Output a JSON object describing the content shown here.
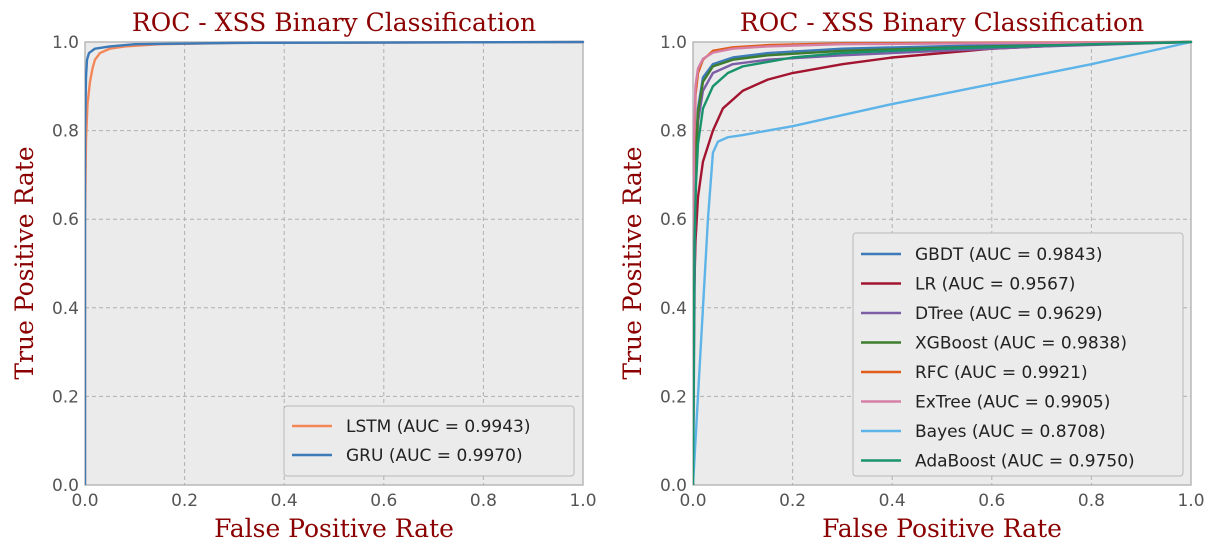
{
  "colors": {
    "LSTM": "#f4875a",
    "GRU": "#3d7ab8",
    "GBDT": "#3d7ab8",
    "LR": "#a2142f",
    "DTree": "#7b5ea6",
    "XGBoost": "#3e7d2e",
    "RFC": "#e05d1a",
    "ExTree": "#d67fa6",
    "Bayes": "#5eb4e8",
    "AdaBoost": "#18936c"
  },
  "chart_data": [
    {
      "type": "line",
      "title": "ROC - XSS Binary Classification",
      "xlabel": "False Positive Rate",
      "ylabel": "True Positive Rate",
      "xlim": [
        0.0,
        1.0
      ],
      "ylim": [
        0.0,
        1.0
      ],
      "xticks": [
        "0.0",
        "0.2",
        "0.4",
        "0.6",
        "0.8",
        "1.0"
      ],
      "yticks": [
        "0.0",
        "0.2",
        "0.4",
        "0.6",
        "0.8",
        "1.0"
      ],
      "grid": true,
      "legend_position": "lower-right",
      "series": [
        {
          "name": "LSTM (AUC = 0.9943)",
          "color_key": "LSTM",
          "x": [
            0,
            0,
            0.002,
            0.005,
            0.01,
            0.015,
            0.02,
            0.03,
            0.05,
            0.08,
            0.15,
            0.3,
            1.0
          ],
          "y": [
            0,
            0.6,
            0.78,
            0.86,
            0.91,
            0.94,
            0.96,
            0.975,
            0.985,
            0.99,
            0.995,
            0.998,
            1.0
          ]
        },
        {
          "name": "GRU (AUC = 0.9970)",
          "color_key": "GRU",
          "x": [
            0,
            0,
            0.002,
            0.004,
            0.008,
            0.02,
            0.05,
            0.1,
            0.3,
            1.0
          ],
          "y": [
            0,
            0.8,
            0.92,
            0.96,
            0.975,
            0.985,
            0.99,
            0.995,
            0.998,
            1.0
          ]
        }
      ]
    },
    {
      "type": "line",
      "title": "ROC - XSS Binary Classification",
      "xlabel": "False Positive Rate",
      "ylabel": "True Positive Rate",
      "xlim": [
        0.0,
        1.0
      ],
      "ylim": [
        0.0,
        1.0
      ],
      "xticks": [
        "0.0",
        "0.2",
        "0.4",
        "0.6",
        "0.8",
        "1.0"
      ],
      "yticks": [
        "0.0",
        "0.2",
        "0.4",
        "0.6",
        "0.8",
        "1.0"
      ],
      "grid": true,
      "legend_position": "lower-right",
      "series": [
        {
          "name": "GBDT (AUC = 0.9843)",
          "color_key": "GBDT",
          "x": [
            0,
            0.002,
            0.005,
            0.01,
            0.02,
            0.04,
            0.08,
            0.15,
            0.3,
            0.6,
            1.0
          ],
          "y": [
            0,
            0.55,
            0.75,
            0.85,
            0.92,
            0.95,
            0.965,
            0.975,
            0.985,
            0.993,
            1.0
          ]
        },
        {
          "name": "LR (AUC = 0.9567)",
          "color_key": "LR",
          "x": [
            0,
            0.002,
            0.005,
            0.01,
            0.02,
            0.04,
            0.06,
            0.1,
            0.15,
            0.2,
            0.3,
            0.4,
            0.6,
            0.8,
            1.0
          ],
          "y": [
            0,
            0.42,
            0.55,
            0.65,
            0.73,
            0.8,
            0.85,
            0.89,
            0.915,
            0.93,
            0.95,
            0.965,
            0.985,
            0.995,
            1.0
          ]
        },
        {
          "name": "DTree (AUC = 0.9629)",
          "color_key": "DTree",
          "x": [
            0,
            0.005,
            0.01,
            0.02,
            0.04,
            0.08,
            0.15,
            0.3,
            0.5,
            0.7,
            1.0
          ],
          "y": [
            0,
            0.7,
            0.82,
            0.89,
            0.93,
            0.95,
            0.96,
            0.97,
            0.98,
            0.99,
            1.0
          ]
        },
        {
          "name": "XGBoost (AUC = 0.9838)",
          "color_key": "XGBoost",
          "x": [
            0,
            0.002,
            0.005,
            0.01,
            0.02,
            0.04,
            0.08,
            0.15,
            0.3,
            0.6,
            1.0
          ],
          "y": [
            0,
            0.5,
            0.72,
            0.84,
            0.91,
            0.945,
            0.96,
            0.97,
            0.98,
            0.99,
            1.0
          ]
        },
        {
          "name": "RFC (AUC = 0.9921)",
          "color_key": "RFC",
          "x": [
            0,
            0.002,
            0.005,
            0.01,
            0.02,
            0.04,
            0.08,
            0.15,
            0.3,
            1.0
          ],
          "y": [
            0,
            0.75,
            0.88,
            0.93,
            0.96,
            0.98,
            0.988,
            0.993,
            0.997,
            1.0
          ]
        },
        {
          "name": "ExTree (AUC = 0.9905)",
          "color_key": "ExTree",
          "x": [
            0,
            0.002,
            0.005,
            0.01,
            0.02,
            0.04,
            0.08,
            0.15,
            0.3,
            1.0
          ],
          "y": [
            0,
            0.78,
            0.9,
            0.94,
            0.962,
            0.976,
            0.985,
            0.99,
            0.995,
            1.0
          ]
        },
        {
          "name": "Bayes (AUC = 0.8708)",
          "color_key": "Bayes",
          "x": [
            0,
            0.01,
            0.02,
            0.03,
            0.04,
            0.05,
            0.07,
            0.1,
            0.2,
            0.4,
            0.6,
            0.8,
            1.0
          ],
          "y": [
            0,
            0.2,
            0.4,
            0.6,
            0.75,
            0.775,
            0.785,
            0.79,
            0.81,
            0.86,
            0.905,
            0.95,
            1.0
          ]
        },
        {
          "name": "AdaBoost (AUC = 0.9750)",
          "color_key": "AdaBoost",
          "x": [
            0,
            0.003,
            0.006,
            0.01,
            0.02,
            0.04,
            0.07,
            0.1,
            0.15,
            0.2,
            0.3,
            0.5,
            0.8,
            1.0
          ],
          "y": [
            0,
            0.55,
            0.68,
            0.77,
            0.85,
            0.9,
            0.93,
            0.945,
            0.955,
            0.965,
            0.975,
            0.985,
            0.995,
            1.0
          ]
        }
      ]
    }
  ]
}
